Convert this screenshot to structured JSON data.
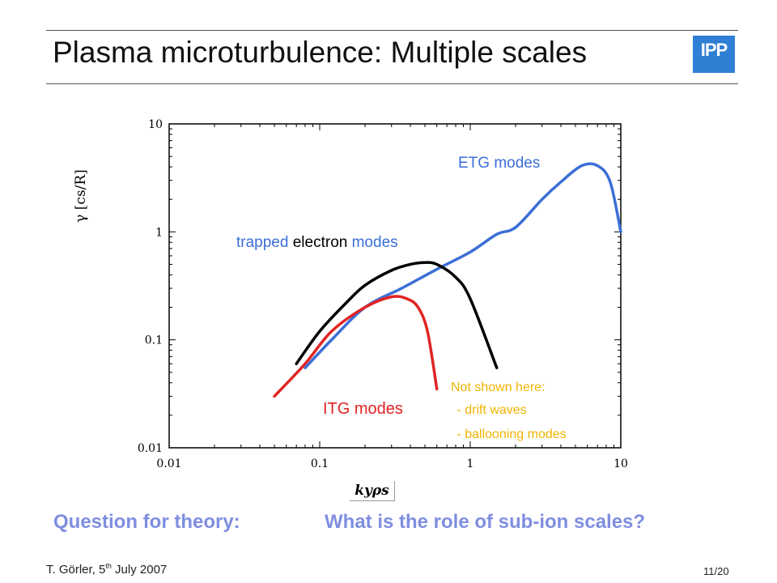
{
  "slide": {
    "title": "Plasma microturbulence: Multiple scales",
    "logo_text": "IPP",
    "question_lead": "Question for theory:",
    "question_text": "What is the role of sub-ion scales?",
    "footer_author": "T. Görler, 5",
    "footer_sup": "th",
    "footer_date": " July 2007",
    "page": "11/20"
  },
  "chart_data": {
    "type": "line",
    "xlabel": "kyρs",
    "ylabel": "γ [cs/R]",
    "xscale": "log",
    "yscale": "log",
    "xlim": [
      0.01,
      10
    ],
    "ylim": [
      0.01,
      10
    ],
    "x_ticks": [
      "0.01",
      "0.1",
      "1",
      "10"
    ],
    "y_ticks": [
      "10",
      "1",
      "0.1",
      "0.01"
    ],
    "grid": false,
    "series": [
      {
        "name": "ETG modes",
        "color": "#3b6fd6",
        "x": [
          0.08,
          0.12,
          0.2,
          0.35,
          0.6,
          1.0,
          1.5,
          2.0,
          3.0,
          4.0,
          5.5,
          7.0,
          8.5,
          10.0
        ],
        "y": [
          0.055,
          0.1,
          0.2,
          0.3,
          0.45,
          0.65,
          0.95,
          1.1,
          2.0,
          2.9,
          4.1,
          4.1,
          2.9,
          1.0
        ]
      },
      {
        "name": "trapped electron modes",
        "color": "#000000",
        "x": [
          0.07,
          0.1,
          0.15,
          0.2,
          0.3,
          0.4,
          0.5,
          0.6,
          0.8,
          1.0,
          1.5
        ],
        "y": [
          0.06,
          0.12,
          0.22,
          0.32,
          0.44,
          0.5,
          0.52,
          0.5,
          0.38,
          0.24,
          0.055
        ]
      },
      {
        "name": "ITG modes",
        "color": "#e02424",
        "x": [
          0.05,
          0.08,
          0.12,
          0.2,
          0.3,
          0.38,
          0.45,
          0.52,
          0.6
        ],
        "y": [
          0.03,
          0.06,
          0.12,
          0.2,
          0.25,
          0.24,
          0.2,
          0.12,
          0.035
        ]
      }
    ],
    "annotations": {
      "etg_label": "ETG modes",
      "tem_label_1": "trapped",
      "tem_label_2": " electron ",
      "tem_label_3": "modes",
      "itg_label": "ITG modes",
      "not_shown_1": "Not shown here:",
      "not_shown_2": " - drift waves",
      "not_shown_3": " - ballooning modes"
    }
  }
}
